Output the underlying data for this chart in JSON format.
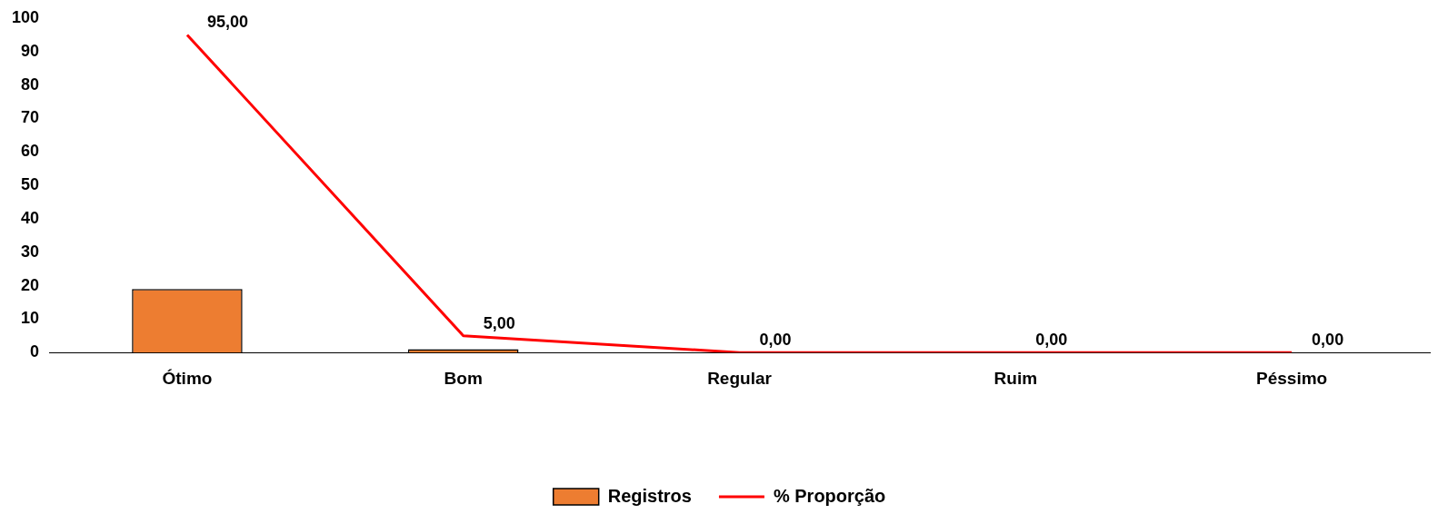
{
  "chart_data": {
    "type": "bar",
    "categories": [
      "Ótimo",
      "Bom",
      "Regular",
      "Ruim",
      "Péssimo"
    ],
    "series": [
      {
        "name": "Registros",
        "color": "#ed7d31",
        "values": [
          19,
          1,
          0,
          0,
          0
        ]
      },
      {
        "name": "% Proporção",
        "type": "line",
        "color": "#ff0000",
        "values": [
          95,
          5,
          0,
          0,
          0
        ],
        "value_labels": [
          "95,00",
          "5,00",
          "0,00",
          "0,00",
          "0,00"
        ],
        "marker": "none"
      }
    ],
    "ylim": [
      0,
      100
    ],
    "yticks": [
      0,
      10,
      20,
      30,
      40,
      50,
      60,
      70,
      80,
      90,
      100
    ],
    "grid": false,
    "legend": "bottom"
  }
}
